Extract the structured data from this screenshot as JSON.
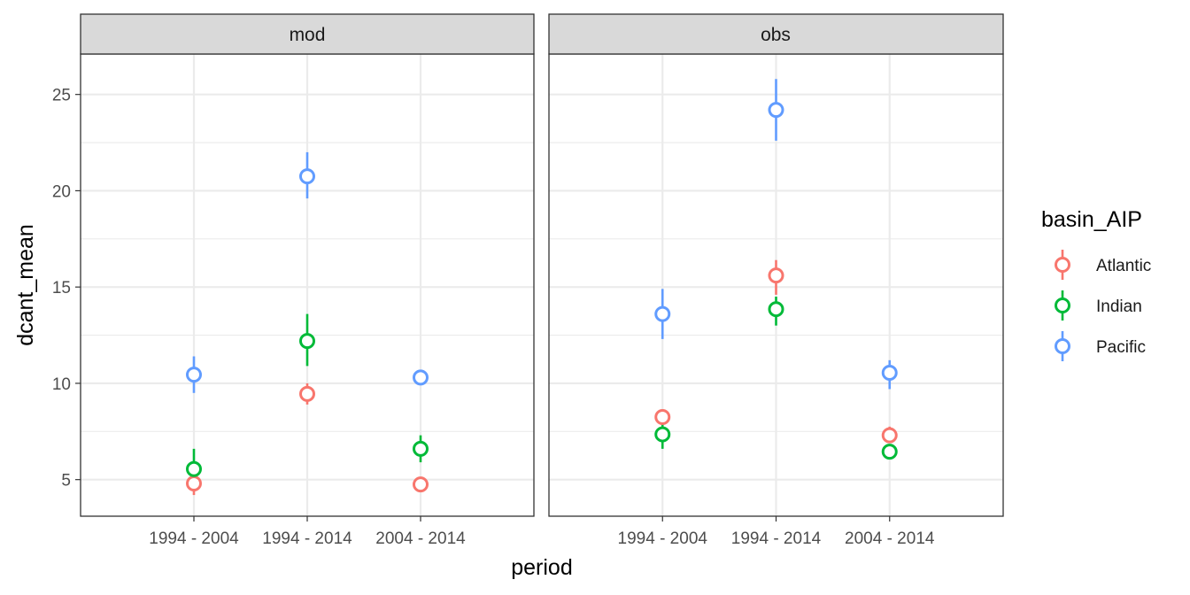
{
  "chart_data": {
    "type": "scatter",
    "facet_by": "variable",
    "facets": [
      "mod",
      "obs"
    ],
    "categories": [
      "1994 - 2004",
      "1994 - 2014",
      "2004 - 2014"
    ],
    "xlabel": "period",
    "ylabel": "dcant_mean",
    "ylim": [
      3.1,
      27.1
    ],
    "yticks": [
      5,
      10,
      15,
      20,
      25
    ],
    "grid": true,
    "legend": {
      "title": "basin_AIP",
      "placement": "right",
      "entries": [
        "Atlantic",
        "Indian",
        "Pacific"
      ]
    },
    "series": [
      {
        "name": "Atlantic",
        "color": "#F8766D",
        "mod": {
          "values": [
            4.8,
            9.45,
            4.75
          ],
          "lower": [
            4.2,
            8.9,
            4.55
          ],
          "upper": [
            5.4,
            10.0,
            4.95
          ]
        },
        "obs": {
          "values": [
            8.25,
            15.6,
            7.3
          ],
          "lower": [
            7.9,
            14.6,
            6.95
          ],
          "upper": [
            8.6,
            16.4,
            7.75
          ]
        }
      },
      {
        "name": "Indian",
        "color": "#00BA38",
        "mod": {
          "values": [
            5.55,
            12.2,
            6.6
          ],
          "lower": [
            4.9,
            10.9,
            5.9
          ],
          "upper": [
            6.6,
            13.6,
            7.3
          ]
        },
        "obs": {
          "values": [
            7.35,
            13.85,
            6.45
          ],
          "lower": [
            6.6,
            13.0,
            6.15
          ],
          "upper": [
            7.95,
            14.5,
            6.75
          ]
        }
      },
      {
        "name": "Pacific",
        "color": "#619CFF",
        "mod": {
          "values": [
            10.45,
            20.75,
            10.3
          ],
          "lower": [
            9.5,
            19.6,
            10.0
          ],
          "upper": [
            11.4,
            22.0,
            10.6
          ]
        },
        "obs": {
          "values": [
            13.6,
            24.2,
            10.55
          ],
          "lower": [
            12.3,
            22.6,
            9.7
          ],
          "upper": [
            14.9,
            25.8,
            11.2
          ]
        }
      }
    ]
  }
}
